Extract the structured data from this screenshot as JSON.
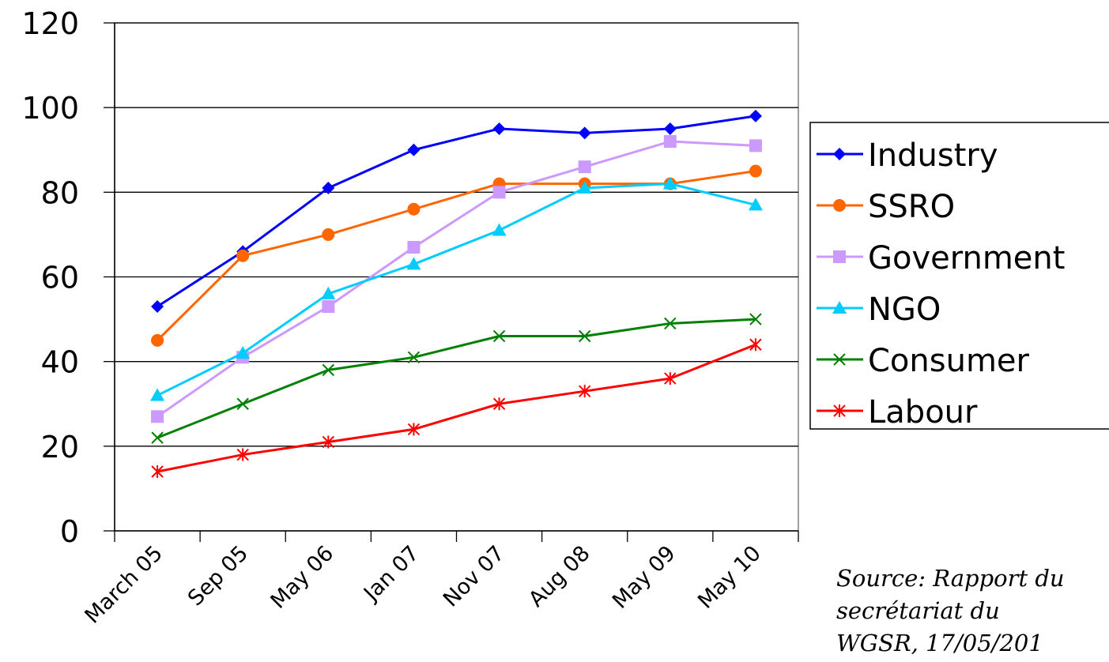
{
  "chart_data": {
    "type": "line",
    "title": "",
    "xlabel": "",
    "ylabel": "",
    "categories": [
      "March 05",
      "Sep 05",
      "May 06",
      "Jan 07",
      "Nov 07",
      "Aug 08",
      "May 09",
      "May 10"
    ],
    "ylim": [
      0,
      120
    ],
    "yticks": [
      "0",
      "20",
      "40",
      "60",
      "80",
      "100",
      "120"
    ],
    "grid": true,
    "legend_position": "right",
    "series": [
      {
        "name": "Industry",
        "color": "#0000ff",
        "marker": "diamond",
        "values": [
          53,
          66,
          81,
          90,
          95,
          94,
          95,
          98
        ]
      },
      {
        "name": "SSRO",
        "color": "#ff6600",
        "marker": "circle",
        "values": [
          45,
          65,
          70,
          76,
          82,
          82,
          82,
          85
        ]
      },
      {
        "name": "Government",
        "color": "#cc99ff",
        "marker": "square",
        "values": [
          27,
          41,
          53,
          67,
          80,
          86,
          92,
          91
        ]
      },
      {
        "name": "NGO",
        "color": "#00ccff",
        "marker": "triangle",
        "values": [
          32,
          42,
          56,
          63,
          71,
          81,
          82,
          77
        ]
      },
      {
        "name": "Consumer",
        "color": "#008000",
        "marker": "x",
        "values": [
          22,
          30,
          38,
          41,
          46,
          46,
          49,
          50
        ]
      },
      {
        "name": "Labour",
        "color": "#ff0000",
        "marker": "star",
        "values": [
          14,
          18,
          21,
          24,
          30,
          33,
          36,
          44
        ]
      }
    ]
  },
  "source": {
    "line1": "Source: Rapport du",
    "line2": "secrétariat du",
    "line3": "WGSR, 17/05/201"
  }
}
